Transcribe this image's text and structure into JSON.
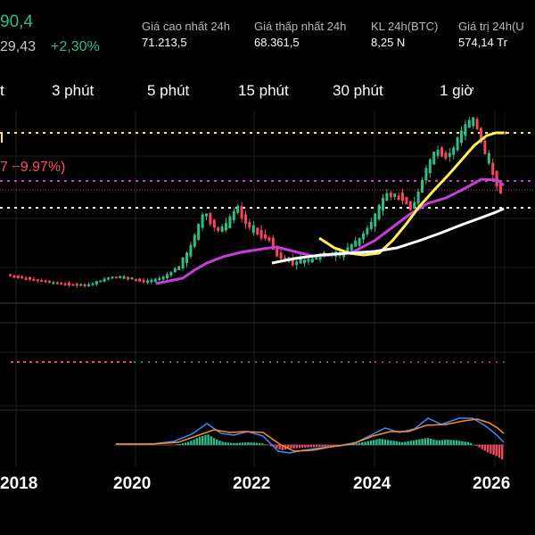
{
  "header": {
    "price": "90,4",
    "sub_value": "29,43",
    "change": "+2,30%",
    "stats": [
      {
        "label": "Giá cao nhất 24h",
        "value": "71.213,5"
      },
      {
        "label": "Giá thấp nhất 24h",
        "value": "68.361,5"
      },
      {
        "label": "KL 24h(BTC)",
        "value": "8,25 N"
      },
      {
        "label": "Giá trị 24h(U",
        "value": "574,14 Tr"
      }
    ]
  },
  "timeframes": [
    "t",
    "3 phút",
    "5 phút",
    "15 phút",
    "30 phút",
    "1 giờ"
  ],
  "chart": {
    "pct_label": "7 −9.97%)",
    "x_axis_labels": [
      "2018",
      "2020",
      "2022",
      "2024",
      "2026"
    ],
    "colors": {
      "up": "#2ebd85",
      "down": "#f6465d",
      "ma_yellow": "#ffee55",
      "ma_purple": "#c83cd8",
      "ma_white": "#ffffff",
      "macd_blue": "#3c8cff",
      "macd_orange": "#ff8a2c"
    }
  }
}
